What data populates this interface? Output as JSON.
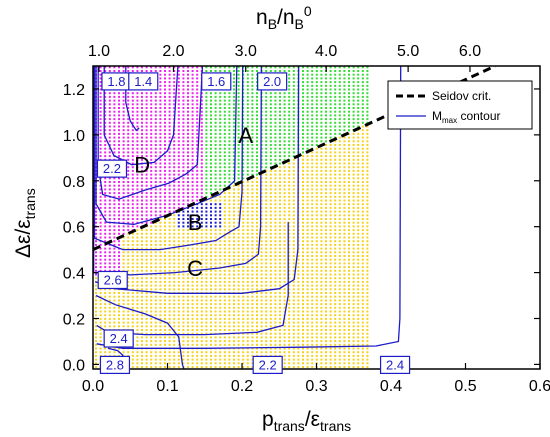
{
  "chart_data": {
    "type": "scatter",
    "xlabel": "p_trans/ε_trans",
    "ylabel": "Δε/ε_trans",
    "x2label": "n_B/n_B^0",
    "xlim": [
      0.0,
      0.6
    ],
    "ylim": [
      -0.02,
      1.3
    ],
    "x_ticks": [
      0.0,
      0.1,
      0.2,
      0.3,
      0.4,
      0.5,
      0.6
    ],
    "y_ticks": [
      0.0,
      0.2,
      0.4,
      0.6,
      0.8,
      1.0,
      1.2
    ],
    "top_ticks": [
      {
        "label": "1.0",
        "x": 0.008
      },
      {
        "label": "2.0",
        "x": 0.108
      },
      {
        "label": "3.0",
        "x": 0.205
      },
      {
        "label": "4.0",
        "x": 0.313
      },
      {
        "label": "5.0",
        "x": 0.423
      },
      {
        "label": "6.0",
        "x": 0.506
      }
    ],
    "grid": false,
    "legend_position": "top-right",
    "legend": [
      {
        "name": "Seidov crit.",
        "style": "dashed",
        "color": "#000000"
      },
      {
        "name": "M_max contour",
        "style": "solid",
        "color": "#1c1cc8"
      }
    ],
    "seidov_line": {
      "x": [
        0.0,
        0.54
      ],
      "y": [
        0.5,
        1.3
      ]
    },
    "regions": [
      {
        "label": "A",
        "color": "#33dd33",
        "x": 0.205,
        "y": 1.0
      },
      {
        "label": "B",
        "color": "#1c1cc8",
        "x": 0.137,
        "y": 0.62
      },
      {
        "label": "C",
        "color": "#f5d21a",
        "x": 0.137,
        "y": 0.42
      },
      {
        "label": "D",
        "color": "#ee22ee",
        "x": 0.066,
        "y": 0.87
      }
    ],
    "contour_labels": [
      {
        "text": "1.8",
        "x": 0.012,
        "y": 1.235
      },
      {
        "text": "1.4",
        "x": 0.048,
        "y": 1.235
      },
      {
        "text": "1.6",
        "x": 0.146,
        "y": 1.235
      },
      {
        "text": "2.0",
        "x": 0.221,
        "y": 1.235
      },
      {
        "text": "2.2",
        "x": 0.006,
        "y": 0.855
      },
      {
        "text": "2.6",
        "x": 0.007,
        "y": 0.37
      },
      {
        "text": "2.4",
        "x": 0.015,
        "y": 0.115
      },
      {
        "text": "2.8",
        "x": 0.01,
        "y": 0.0
      },
      {
        "text": "2.2",
        "x": 0.215,
        "y": 0.0
      },
      {
        "text": "2.4",
        "x": 0.386,
        "y": 0.0
      }
    ],
    "contours": [
      {
        "level": "1.4",
        "points": [
          [
            0.044,
            1.3
          ],
          [
            0.044,
            1.14
          ],
          [
            0.05,
            1.06
          ],
          [
            0.058,
            1.02
          ],
          [
            0.062,
            1.03
          ]
        ]
      },
      {
        "level": "1.6",
        "points": [
          [
            0.015,
            1.3
          ],
          [
            0.015,
            1.0
          ],
          [
            0.028,
            0.91
          ],
          [
            0.052,
            0.87
          ],
          [
            0.082,
            0.88
          ],
          [
            0.1,
            0.93
          ],
          [
            0.108,
            1.0
          ],
          [
            0.114,
            1.3
          ]
        ]
      },
      {
        "level": "1.8",
        "points": [
          [
            0.007,
            1.3
          ],
          [
            0.007,
            0.86
          ],
          [
            0.013,
            0.74
          ],
          [
            0.035,
            0.72
          ],
          [
            0.07,
            0.76
          ],
          [
            0.102,
            0.79
          ],
          [
            0.125,
            0.83
          ],
          [
            0.14,
            0.87
          ],
          [
            0.147,
            1.3
          ]
        ]
      },
      {
        "level": "2.0",
        "points": [
          [
            0.004,
            1.3
          ],
          [
            0.004,
            0.7
          ],
          [
            0.018,
            0.62
          ],
          [
            0.055,
            0.61
          ],
          [
            0.1,
            0.65
          ],
          [
            0.14,
            0.7
          ],
          [
            0.17,
            0.74
          ],
          [
            0.19,
            0.8
          ],
          [
            0.193,
            1.3
          ]
        ]
      },
      {
        "level": "2.2a",
        "points": [
          [
            0.002,
            1.3
          ],
          [
            0.002,
            0.55
          ],
          [
            0.04,
            0.5
          ],
          [
            0.09,
            0.5
          ],
          [
            0.13,
            0.52
          ],
          [
            0.165,
            0.54
          ],
          [
            0.185,
            0.58
          ],
          [
            0.196,
            0.6
          ],
          [
            0.2,
            0.75
          ],
          [
            0.201,
            1.3
          ]
        ]
      },
      {
        "level": "2.2b",
        "points": [
          [
            0.001,
            1.3
          ],
          [
            0.001,
            0.4
          ],
          [
            0.05,
            0.39
          ],
          [
            0.11,
            0.4
          ],
          [
            0.17,
            0.42
          ],
          [
            0.205,
            0.44
          ],
          [
            0.222,
            0.48
          ],
          [
            0.225,
            0.6
          ],
          [
            0.226,
            1.3
          ]
        ]
      },
      {
        "level": "2.2c",
        "points": [
          [
            0.003,
            0.36
          ],
          [
            0.03,
            0.33
          ],
          [
            0.1,
            0.31
          ],
          [
            0.2,
            0.31
          ],
          [
            0.25,
            0.33
          ],
          [
            0.27,
            0.37
          ],
          [
            0.275,
            0.5
          ],
          [
            0.276,
            1.3
          ]
        ]
      },
      {
        "level": "2.4a",
        "points": [
          [
            0.005,
            0.17
          ],
          [
            0.02,
            0.14
          ],
          [
            0.07,
            0.13
          ],
          [
            0.15,
            0.13
          ],
          [
            0.22,
            0.14
          ],
          [
            0.255,
            0.17
          ],
          [
            0.262,
            0.3
          ],
          [
            0.262,
            0.62
          ]
        ]
      },
      {
        "level": "2.4b",
        "points": [
          [
            0.005,
            0.09
          ],
          [
            0.04,
            0.07
          ],
          [
            0.15,
            0.07
          ],
          [
            0.28,
            0.075
          ],
          [
            0.38,
            0.08
          ],
          [
            0.41,
            0.1
          ],
          [
            0.412,
            0.2
          ],
          [
            0.413,
            1.3
          ]
        ]
      },
      {
        "level": "2.8",
        "points": [
          [
            0.02,
            -0.02
          ],
          [
            0.035,
            0.01
          ],
          [
            0.04,
            0.04
          ],
          [
            0.033,
            0.06
          ],
          [
            0.02,
            0.07
          ]
        ]
      },
      {
        "level": "2.6",
        "points": [
          [
            0.004,
            0.3
          ],
          [
            0.03,
            0.26
          ],
          [
            0.07,
            0.22
          ],
          [
            0.1,
            0.18
          ],
          [
            0.115,
            0.12
          ],
          [
            0.12,
            0.0
          ],
          [
            0.122,
            -0.02
          ]
        ]
      }
    ]
  }
}
